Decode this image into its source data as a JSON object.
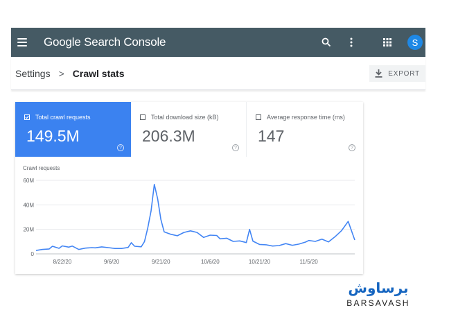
{
  "app": {
    "title_google": "Google",
    "title_product": "Search Console",
    "avatar_letter": "S"
  },
  "breadcrumb": {
    "parent": "Settings",
    "separator": ">",
    "current": "Crawl stats"
  },
  "export": {
    "label": "EXPORT"
  },
  "metrics": [
    {
      "label": "Total crawl requests",
      "value": "149.5M",
      "selected": true
    },
    {
      "label": "Total download size (kB)",
      "value": "206.3M",
      "selected": false
    },
    {
      "label": "Average response time (ms)",
      "value": "147",
      "selected": false
    }
  ],
  "chart_label": "Crawl requests",
  "chart_data": {
    "type": "line",
    "ylabel": "Crawl requests",
    "ylim": [
      0,
      60000000
    ],
    "yticks": [
      {
        "value": 0,
        "label": "0"
      },
      {
        "value": 20000000,
        "label": "20M"
      },
      {
        "value": 40000000,
        "label": "40M"
      },
      {
        "value": 60000000,
        "label": "60M"
      }
    ],
    "x_start": "2020-08-14",
    "x_end": "2020-11-19",
    "xticks": [
      {
        "date": "2020-08-22",
        "label": "8/22/20"
      },
      {
        "date": "2020-09-06",
        "label": "9/6/20"
      },
      {
        "date": "2020-09-21",
        "label": "9/21/20"
      },
      {
        "date": "2020-10-06",
        "label": "10/6/20"
      },
      {
        "date": "2020-10-21",
        "label": "10/21/20"
      },
      {
        "date": "2020-11-05",
        "label": "11/5/20"
      }
    ],
    "series": [
      {
        "color": "#4285f4",
        "points": [
          [
            "2020-08-14",
            2800000
          ],
          [
            "2020-08-16",
            3600000
          ],
          [
            "2020-08-18",
            4000000
          ],
          [
            "2020-08-19",
            6200000
          ],
          [
            "2020-08-21",
            4500000
          ],
          [
            "2020-08-22",
            6500000
          ],
          [
            "2020-08-24",
            5500000
          ],
          [
            "2020-08-25",
            6400000
          ],
          [
            "2020-08-27",
            3600000
          ],
          [
            "2020-08-29",
            4700000
          ],
          [
            "2020-08-31",
            5100000
          ],
          [
            "2020-09-01",
            4900000
          ],
          [
            "2020-09-03",
            5700000
          ],
          [
            "2020-09-05",
            5100000
          ],
          [
            "2020-09-07",
            4400000
          ],
          [
            "2020-09-09",
            4400000
          ],
          [
            "2020-09-11",
            5200000
          ],
          [
            "2020-09-12",
            9100000
          ],
          [
            "2020-09-13",
            6200000
          ],
          [
            "2020-09-15",
            5800000
          ],
          [
            "2020-09-16",
            10000000
          ],
          [
            "2020-09-17",
            21000000
          ],
          [
            "2020-09-18",
            35000000
          ],
          [
            "2020-09-19",
            56700000
          ],
          [
            "2020-09-20",
            45000000
          ],
          [
            "2020-09-21",
            28000000
          ],
          [
            "2020-09-22",
            18000000
          ],
          [
            "2020-09-24",
            16000000
          ],
          [
            "2020-09-26",
            14800000
          ],
          [
            "2020-09-28",
            17500000
          ],
          [
            "2020-09-30",
            18800000
          ],
          [
            "2020-10-02",
            17500000
          ],
          [
            "2020-10-04",
            13400000
          ],
          [
            "2020-10-06",
            15300000
          ],
          [
            "2020-10-08",
            15000000
          ],
          [
            "2020-10-09",
            12300000
          ],
          [
            "2020-10-11",
            12800000
          ],
          [
            "2020-10-13",
            10200000
          ],
          [
            "2020-10-15",
            10600000
          ],
          [
            "2020-10-17",
            9200000
          ],
          [
            "2020-10-18",
            20000000
          ],
          [
            "2020-10-19",
            10400000
          ],
          [
            "2020-10-21",
            7700000
          ],
          [
            "2020-10-23",
            7400000
          ],
          [
            "2020-10-25",
            6400000
          ],
          [
            "2020-10-27",
            6800000
          ],
          [
            "2020-10-29",
            8400000
          ],
          [
            "2020-10-31",
            7000000
          ],
          [
            "2020-11-02",
            8000000
          ],
          [
            "2020-11-04",
            9600000
          ],
          [
            "2020-11-05",
            10900000
          ],
          [
            "2020-11-07",
            10200000
          ],
          [
            "2020-11-09",
            12000000
          ],
          [
            "2020-11-11",
            9800000
          ],
          [
            "2020-11-13",
            14000000
          ],
          [
            "2020-11-15",
            19000000
          ],
          [
            "2020-11-17",
            26500000
          ],
          [
            "2020-11-19",
            11300000
          ]
        ]
      }
    ],
    "grid": true,
    "legend": "none"
  },
  "watermark": {
    "arabic": "برساوش",
    "latin": "BARSAVASH"
  },
  "colors": {
    "appbar": "#455a64",
    "selected_metric": "#3b82f0",
    "line": "#4285f4"
  },
  "icons": [
    "menu-icon",
    "search-icon",
    "more-vert-icon",
    "apps-icon",
    "download-icon",
    "checkbox-icon",
    "help-icon"
  ]
}
